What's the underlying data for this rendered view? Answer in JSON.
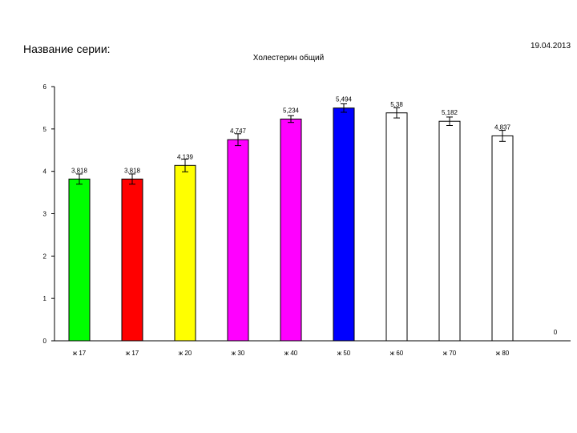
{
  "header": {
    "series_name_label": "Название серии:",
    "date": "19.04.2013"
  },
  "chart_data": {
    "type": "bar",
    "title": "Холестерин общий",
    "xlabel": "",
    "ylabel": "",
    "ylim": [
      0,
      6
    ],
    "yticks": [
      0,
      1,
      2,
      3,
      4,
      5,
      6
    ],
    "grid": false,
    "legend": "none",
    "categories": [
      "ж 17",
      "ж 17",
      "ж 20",
      "ж 30",
      "ж 40",
      "ж 50",
      "ж 60",
      "ж 70",
      "ж 80",
      ""
    ],
    "values": [
      3.818,
      3.818,
      4.139,
      4.747,
      5.234,
      5.494,
      5.38,
      5.182,
      4.837,
      0
    ],
    "data_labels": [
      "3,818",
      "3,818",
      "4,139",
      "4,747",
      "5,234",
      "5,494",
      "5,38",
      "5,182",
      "4,837",
      "0"
    ],
    "errors": [
      0.12,
      0.12,
      0.15,
      0.14,
      0.08,
      0.1,
      0.12,
      0.1,
      0.13,
      0
    ],
    "colors": [
      "#00ff00",
      "#ff0000",
      "#ffff00",
      "#ff00ff",
      "#ff00ff",
      "#0000ff",
      "#ffffff",
      "#ffffff",
      "#ffffff",
      "#ffffff"
    ]
  }
}
